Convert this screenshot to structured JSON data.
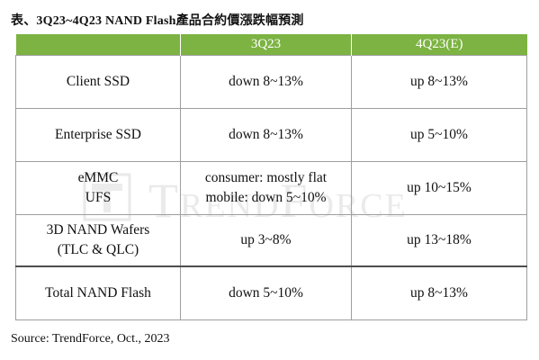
{
  "title": "表、3Q23~4Q23 NAND Flash產品合約價漲跌幅預測",
  "table": {
    "headers": [
      "",
      "3Q23",
      "4Q23(E)"
    ],
    "rows": [
      {
        "product": [
          "Client SSD"
        ],
        "q3": [
          "down 8~13%"
        ],
        "q4": [
          "up 8~13%"
        ]
      },
      {
        "product": [
          "Enterprise SSD"
        ],
        "q3": [
          "down 8~13%"
        ],
        "q4": [
          "up 5~10%"
        ]
      },
      {
        "product": [
          "eMMC",
          "UFS"
        ],
        "q3": [
          "consumer: mostly flat",
          "mobile: down 5~10%"
        ],
        "q4": [
          "up 10~15%"
        ]
      },
      {
        "product": [
          "3D NAND Wafers",
          "(TLC & QLC)"
        ],
        "q3": [
          "up 3~8%"
        ],
        "q4": [
          "up 13~18%"
        ]
      },
      {
        "product": [
          "Total NAND Flash"
        ],
        "q3": [
          "down 5~10%"
        ],
        "q4": [
          "up 8~13%"
        ]
      }
    ]
  },
  "watermark": "TrendForce",
  "source": "Source: TrendForce, Oct., 2023",
  "colors": {
    "header_bg": "#7cb342",
    "header_text": "#ffffff",
    "border": "#9e9e9e"
  }
}
